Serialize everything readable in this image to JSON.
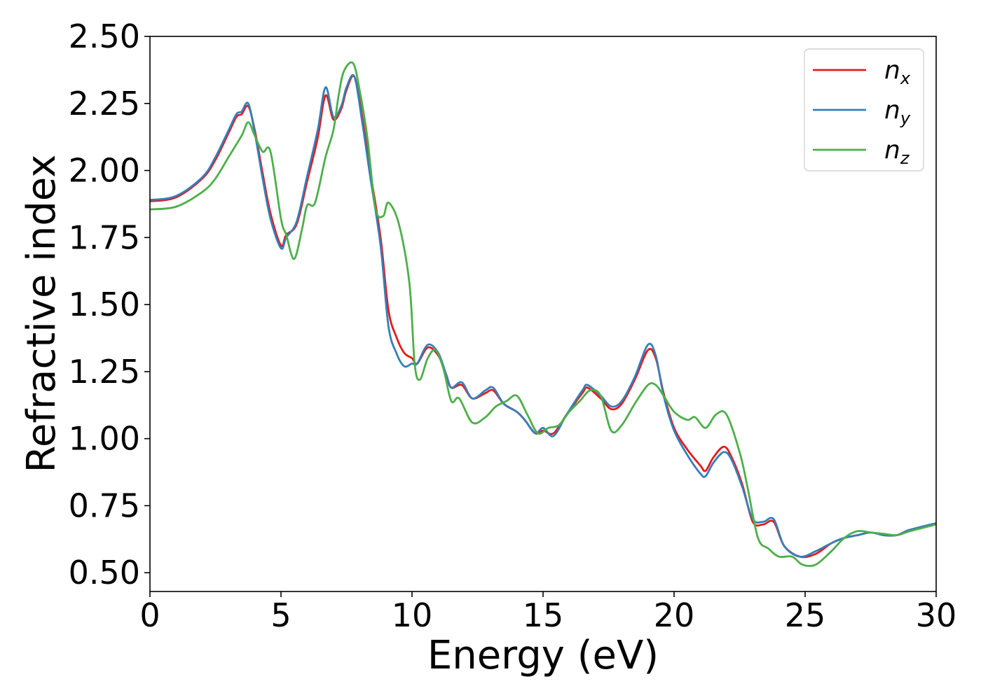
{
  "chart_data": {
    "type": "line",
    "title": "",
    "xlabel": "Energy (eV)",
    "ylabel": "Refractive index",
    "xlim": [
      0,
      30
    ],
    "ylim": [
      0.43,
      2.5
    ],
    "xticks": [
      0,
      5,
      10,
      15,
      20,
      25,
      30
    ],
    "xtick_labels": [
      "0",
      "5",
      "10",
      "15",
      "20",
      "25",
      "30"
    ],
    "yticks": [
      0.5,
      0.75,
      1.0,
      1.25,
      1.5,
      1.75,
      2.0,
      2.25,
      2.5
    ],
    "ytick_labels": [
      "0.50",
      "0.75",
      "1.00",
      "1.25",
      "1.50",
      "1.75",
      "2.00",
      "2.25",
      "2.50"
    ],
    "grid": false,
    "legend_position": "top-right",
    "series": [
      {
        "name": "n",
        "subscript": "x",
        "color": "#e41a1c",
        "points": [
          [
            0,
            1.885
          ],
          [
            1,
            1.9
          ],
          [
            2,
            1.97
          ],
          [
            2.5,
            2.04
          ],
          [
            3,
            2.14
          ],
          [
            3.3,
            2.2
          ],
          [
            3.5,
            2.21
          ],
          [
            3.75,
            2.24
          ],
          [
            4,
            2.15
          ],
          [
            4.3,
            1.99
          ],
          [
            4.6,
            1.84
          ],
          [
            5,
            1.72
          ],
          [
            5.2,
            1.76
          ],
          [
            5.6,
            1.8
          ],
          [
            6,
            1.96
          ],
          [
            6.4,
            2.12
          ],
          [
            6.7,
            2.28
          ],
          [
            7,
            2.19
          ],
          [
            7.3,
            2.23
          ],
          [
            7.5,
            2.3
          ],
          [
            7.8,
            2.35
          ],
          [
            8.1,
            2.2
          ],
          [
            8.4,
            2.0
          ],
          [
            8.8,
            1.75
          ],
          [
            9.1,
            1.48
          ],
          [
            9.4,
            1.38
          ],
          [
            9.7,
            1.32
          ],
          [
            10,
            1.3
          ],
          [
            10.2,
            1.28
          ],
          [
            10.6,
            1.34
          ],
          [
            11,
            1.31
          ],
          [
            11.3,
            1.24
          ],
          [
            11.5,
            1.19
          ],
          [
            11.9,
            1.2
          ],
          [
            12.3,
            1.15
          ],
          [
            12.8,
            1.17
          ],
          [
            13.1,
            1.18
          ],
          [
            13.5,
            1.13
          ],
          [
            14,
            1.1
          ],
          [
            14.3,
            1.07
          ],
          [
            14.7,
            1.02
          ],
          [
            15,
            1.03
          ],
          [
            15.4,
            1.02
          ],
          [
            15.9,
            1.09
          ],
          [
            16.5,
            1.17
          ],
          [
            16.7,
            1.19
          ],
          [
            17.2,
            1.15
          ],
          [
            17.6,
            1.11
          ],
          [
            18,
            1.13
          ],
          [
            18.5,
            1.22
          ],
          [
            19,
            1.33
          ],
          [
            19.3,
            1.3
          ],
          [
            19.6,
            1.17
          ],
          [
            20,
            1.04
          ],
          [
            20.5,
            0.96
          ],
          [
            21,
            0.9
          ],
          [
            21.2,
            0.88
          ],
          [
            21.5,
            0.93
          ],
          [
            21.9,
            0.97
          ],
          [
            22.2,
            0.93
          ],
          [
            22.6,
            0.83
          ],
          [
            23,
            0.69
          ],
          [
            23.4,
            0.68
          ],
          [
            23.8,
            0.69
          ],
          [
            24.2,
            0.6
          ],
          [
            24.8,
            0.56
          ],
          [
            25.4,
            0.57
          ],
          [
            26,
            0.61
          ],
          [
            26.5,
            0.63
          ],
          [
            27,
            0.64
          ],
          [
            27.5,
            0.65
          ],
          [
            28,
            0.64
          ],
          [
            28.5,
            0.64
          ],
          [
            29,
            0.66
          ],
          [
            30,
            0.68
          ]
        ]
      },
      {
        "name": "n",
        "subscript": "y",
        "color": "#377eb8",
        "points": [
          [
            0,
            1.89
          ],
          [
            1,
            1.905
          ],
          [
            2,
            1.975
          ],
          [
            2.5,
            2.05
          ],
          [
            3,
            2.15
          ],
          [
            3.3,
            2.21
          ],
          [
            3.5,
            2.22
          ],
          [
            3.75,
            2.25
          ],
          [
            4,
            2.14
          ],
          [
            4.3,
            1.97
          ],
          [
            4.6,
            1.82
          ],
          [
            5,
            1.71
          ],
          [
            5.2,
            1.75
          ],
          [
            5.6,
            1.81
          ],
          [
            6,
            1.98
          ],
          [
            6.4,
            2.15
          ],
          [
            6.7,
            2.31
          ],
          [
            7,
            2.2
          ],
          [
            7.3,
            2.24
          ],
          [
            7.5,
            2.31
          ],
          [
            7.8,
            2.35
          ],
          [
            8.1,
            2.18
          ],
          [
            8.4,
            1.98
          ],
          [
            8.8,
            1.72
          ],
          [
            9.1,
            1.42
          ],
          [
            9.4,
            1.32
          ],
          [
            9.7,
            1.27
          ],
          [
            10,
            1.28
          ],
          [
            10.2,
            1.28
          ],
          [
            10.6,
            1.35
          ],
          [
            11,
            1.32
          ],
          [
            11.3,
            1.24
          ],
          [
            11.5,
            1.19
          ],
          [
            11.9,
            1.21
          ],
          [
            12.3,
            1.15
          ],
          [
            12.8,
            1.18
          ],
          [
            13.1,
            1.19
          ],
          [
            13.5,
            1.13
          ],
          [
            14,
            1.1
          ],
          [
            14.3,
            1.07
          ],
          [
            14.7,
            1.02
          ],
          [
            15,
            1.04
          ],
          [
            15.4,
            1.01
          ],
          [
            15.9,
            1.09
          ],
          [
            16.5,
            1.18
          ],
          [
            16.7,
            1.2
          ],
          [
            17.2,
            1.16
          ],
          [
            17.6,
            1.12
          ],
          [
            18,
            1.14
          ],
          [
            18.5,
            1.23
          ],
          [
            19,
            1.35
          ],
          [
            19.3,
            1.31
          ],
          [
            19.6,
            1.16
          ],
          [
            20,
            1.03
          ],
          [
            20.5,
            0.94
          ],
          [
            21,
            0.87
          ],
          [
            21.2,
            0.86
          ],
          [
            21.5,
            0.91
          ],
          [
            21.9,
            0.95
          ],
          [
            22.2,
            0.92
          ],
          [
            22.6,
            0.82
          ],
          [
            23,
            0.7
          ],
          [
            23.4,
            0.69
          ],
          [
            23.8,
            0.7
          ],
          [
            24.2,
            0.6
          ],
          [
            24.8,
            0.56
          ],
          [
            25.4,
            0.58
          ],
          [
            26,
            0.61
          ],
          [
            26.5,
            0.63
          ],
          [
            27,
            0.64
          ],
          [
            27.5,
            0.65
          ],
          [
            28,
            0.64
          ],
          [
            28.5,
            0.64
          ],
          [
            29,
            0.66
          ],
          [
            30,
            0.685
          ]
        ]
      },
      {
        "name": "n",
        "subscript": "z",
        "color": "#4daf4a",
        "points": [
          [
            0,
            1.855
          ],
          [
            1,
            1.865
          ],
          [
            2,
            1.92
          ],
          [
            2.5,
            1.97
          ],
          [
            3,
            2.05
          ],
          [
            3.5,
            2.13
          ],
          [
            3.75,
            2.18
          ],
          [
            4,
            2.13
          ],
          [
            4.3,
            2.07
          ],
          [
            4.6,
            2.07
          ],
          [
            5,
            1.82
          ],
          [
            5.2,
            1.76
          ],
          [
            5.5,
            1.67
          ],
          [
            5.8,
            1.78
          ],
          [
            6,
            1.87
          ],
          [
            6.3,
            1.88
          ],
          [
            6.7,
            2.05
          ],
          [
            7,
            2.15
          ],
          [
            7.2,
            2.28
          ],
          [
            7.4,
            2.37
          ],
          [
            7.75,
            2.4
          ],
          [
            8,
            2.3
          ],
          [
            8.3,
            2.12
          ],
          [
            8.6,
            1.86
          ],
          [
            8.9,
            1.83
          ],
          [
            9.1,
            1.88
          ],
          [
            9.5,
            1.8
          ],
          [
            9.9,
            1.58
          ],
          [
            10.1,
            1.28
          ],
          [
            10.3,
            1.22
          ],
          [
            10.6,
            1.3
          ],
          [
            10.9,
            1.33
          ],
          [
            11.2,
            1.26
          ],
          [
            11.5,
            1.14
          ],
          [
            11.8,
            1.15
          ],
          [
            12.3,
            1.06
          ],
          [
            12.8,
            1.08
          ],
          [
            13.2,
            1.12
          ],
          [
            13.6,
            1.14
          ],
          [
            14,
            1.16
          ],
          [
            14.4,
            1.09
          ],
          [
            14.8,
            1.02
          ],
          [
            15.2,
            1.04
          ],
          [
            15.6,
            1.05
          ],
          [
            16,
            1.1
          ],
          [
            16.4,
            1.14
          ],
          [
            16.8,
            1.18
          ],
          [
            17.2,
            1.16
          ],
          [
            17.6,
            1.03
          ],
          [
            18,
            1.05
          ],
          [
            18.5,
            1.13
          ],
          [
            19,
            1.2
          ],
          [
            19.3,
            1.2
          ],
          [
            19.6,
            1.16
          ],
          [
            20,
            1.1
          ],
          [
            20.5,
            1.07
          ],
          [
            20.8,
            1.08
          ],
          [
            21.2,
            1.04
          ],
          [
            21.6,
            1.09
          ],
          [
            22,
            1.09
          ],
          [
            22.5,
            0.95
          ],
          [
            22.8,
            0.82
          ],
          [
            23.2,
            0.63
          ],
          [
            23.6,
            0.59
          ],
          [
            24,
            0.56
          ],
          [
            24.5,
            0.56
          ],
          [
            24.9,
            0.53
          ],
          [
            25.4,
            0.53
          ],
          [
            26,
            0.58
          ],
          [
            26.5,
            0.63
          ],
          [
            27,
            0.655
          ],
          [
            27.5,
            0.65
          ],
          [
            28,
            0.645
          ],
          [
            28.5,
            0.64
          ],
          [
            29,
            0.655
          ],
          [
            30,
            0.68
          ]
        ]
      }
    ]
  }
}
